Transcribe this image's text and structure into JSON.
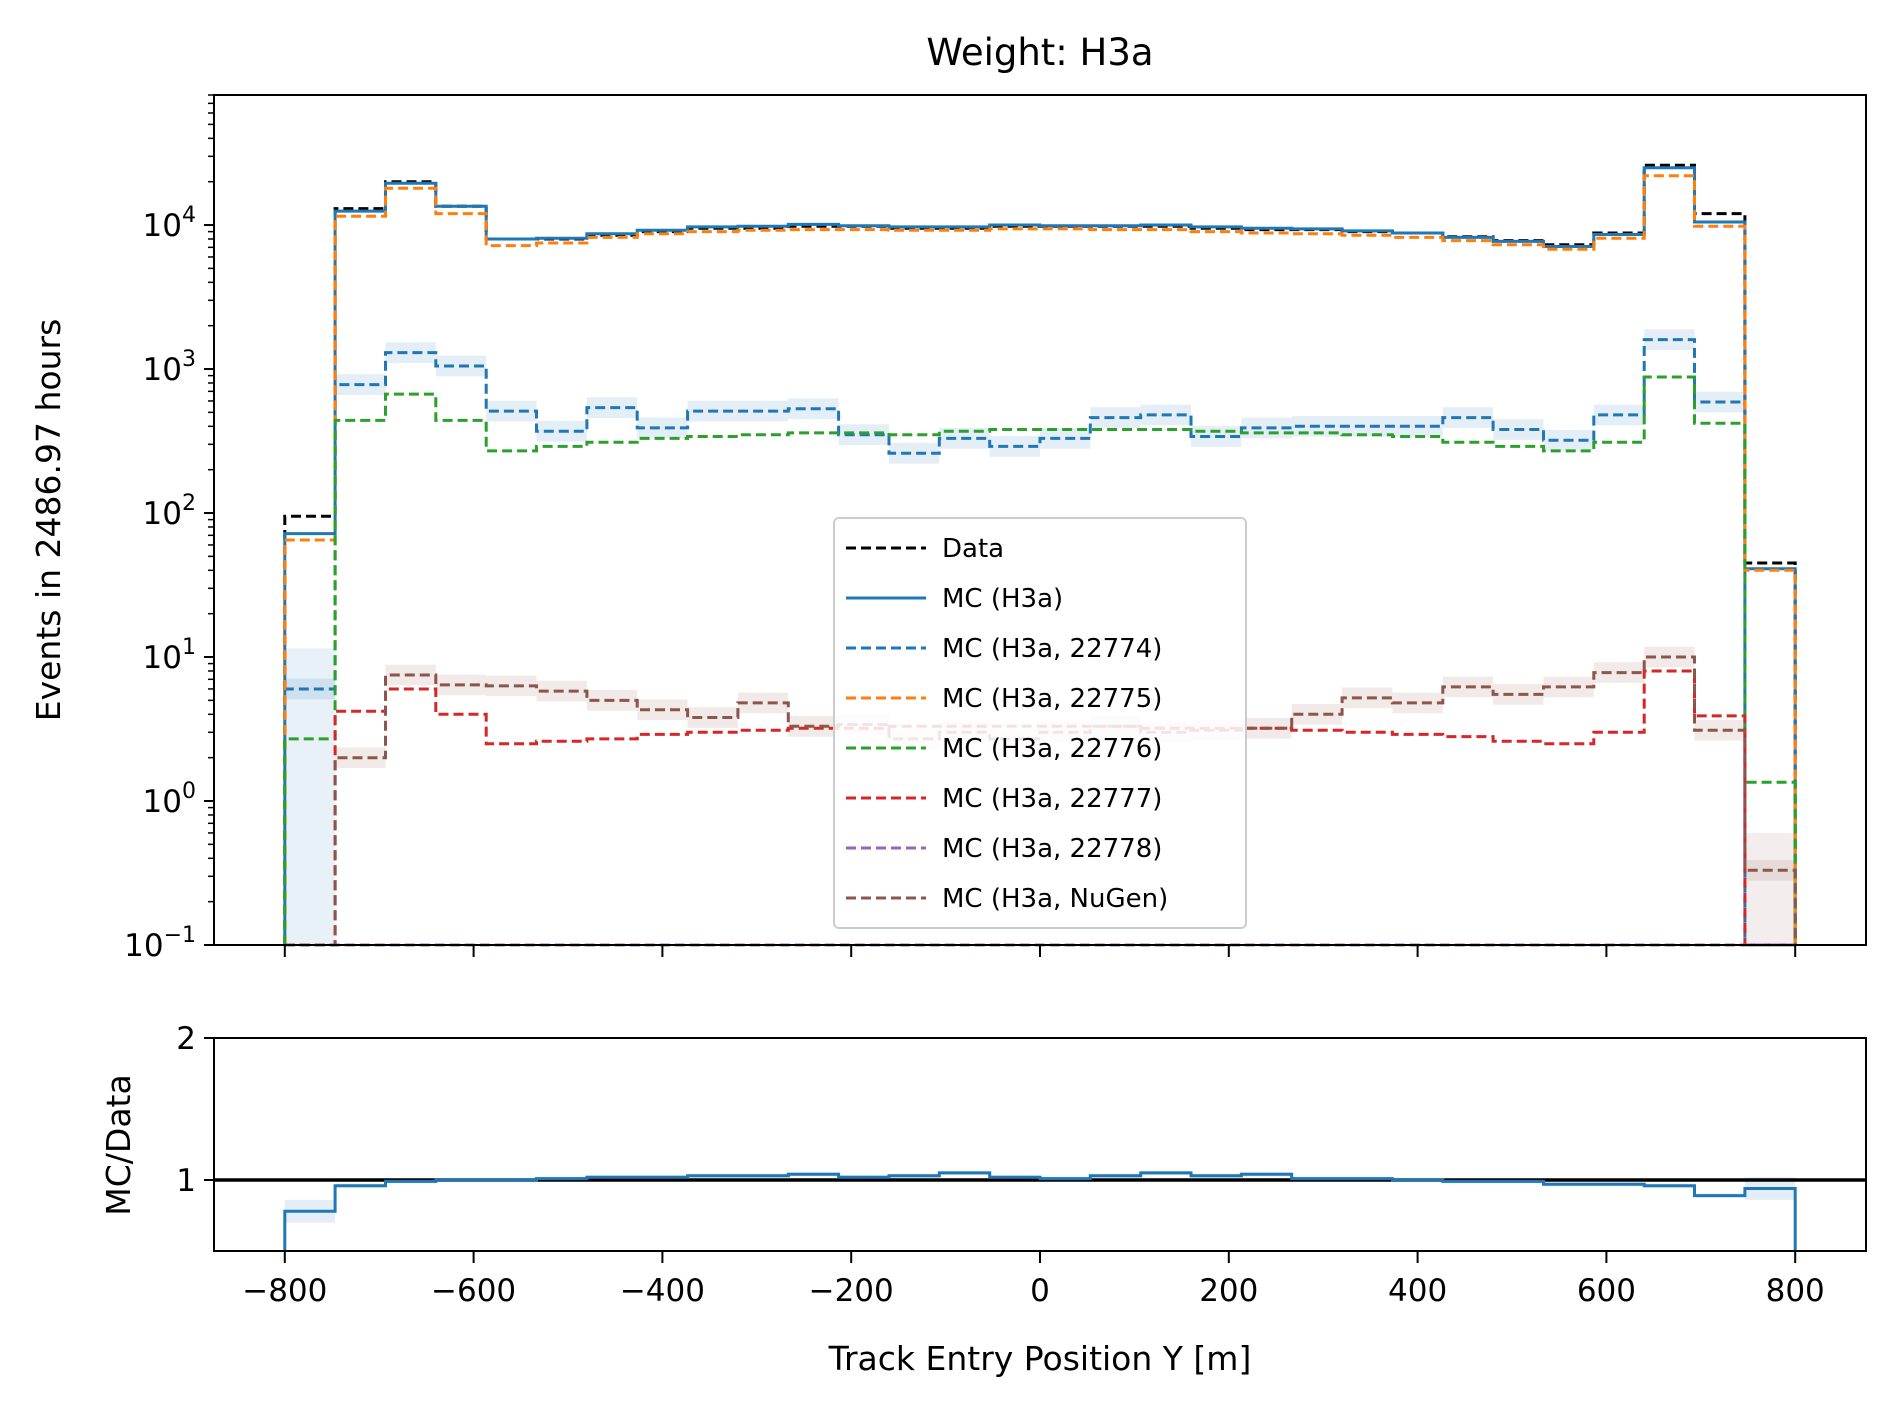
{
  "chart_data": [
    {
      "type": "histogram-step",
      "title": "Weight: H3a",
      "xlabel": "",
      "ylabel": "Events in 2486.97 hours",
      "yscale": "log",
      "xlim": [
        -875,
        875
      ],
      "ylim": [
        0.1,
        80000
      ],
      "xticks": [
        -800,
        -600,
        -400,
        -200,
        0,
        200,
        400,
        600,
        800
      ],
      "yticks": [
        {
          "value": 0.1,
          "base": "10",
          "exp": "−1"
        },
        {
          "value": 1,
          "base": "10",
          "exp": "0"
        },
        {
          "value": 10,
          "base": "10",
          "exp": "1"
        },
        {
          "value": 100,
          "base": "10",
          "exp": "2"
        },
        {
          "value": 1000,
          "base": "10",
          "exp": "3"
        },
        {
          "value": 10000,
          "base": "10",
          "exp": "4"
        }
      ],
      "legend_position": "lower-center",
      "bin_edges": [
        -800,
        -746.67,
        -693.33,
        -640,
        -586.67,
        -533.33,
        -480,
        -426.67,
        -373.33,
        -320,
        -266.67,
        -213.33,
        -160,
        -106.67,
        -53.33,
        0,
        53.33,
        106.67,
        160,
        213.33,
        266.67,
        320,
        373.33,
        426.67,
        480,
        533.33,
        586.67,
        640,
        693.33,
        746.67,
        800
      ],
      "series": [
        {
          "name": "Data",
          "color": "#000000",
          "dash": true,
          "values": [
            95,
            13000,
            20000,
            13500,
            8000,
            8000,
            8500,
            9000,
            9500,
            9500,
            9800,
            9800,
            9500,
            9500,
            9800,
            9800,
            9800,
            9800,
            9500,
            9300,
            9300,
            9000,
            8800,
            8300,
            7800,
            7300,
            8800,
            26000,
            12000,
            45
          ]
        },
        {
          "name": "MC (H3a)",
          "color": "#1f77b4",
          "dash": false,
          "values": [
            72,
            12500,
            19500,
            13500,
            8000,
            8100,
            8700,
            9200,
            9700,
            9800,
            10100,
            9900,
            9700,
            9700,
            10000,
            9900,
            9900,
            10000,
            9700,
            9500,
            9400,
            9100,
            8800,
            8200,
            7700,
            7100,
            8600,
            25000,
            10500,
            41
          ]
        },
        {
          "name": "MC (H3a, 22774)",
          "color": "#1f77b4",
          "dash": true,
          "band": true,
          "values": [
            6,
            780,
            1300,
            1050,
            510,
            370,
            540,
            390,
            510,
            510,
            530,
            350,
            260,
            330,
            290,
            330,
            460,
            480,
            340,
            390,
            400,
            400,
            400,
            460,
            380,
            320,
            480,
            1600,
            590,
            0.05
          ]
        },
        {
          "name": "MC (H3a, 22775)",
          "color": "#ff7f0e",
          "dash": true,
          "values": [
            65,
            11500,
            18000,
            12000,
            7200,
            7500,
            8200,
            8700,
            9000,
            9200,
            9300,
            9300,
            9200,
            9200,
            9400,
            9400,
            9300,
            9300,
            9000,
            8800,
            8700,
            8500,
            8200,
            7800,
            7300,
            6800,
            8100,
            22000,
            9800,
            40
          ]
        },
        {
          "name": "MC (H3a, 22776)",
          "color": "#2ca02c",
          "dash": true,
          "values": [
            2.7,
            440,
            670,
            440,
            270,
            290,
            310,
            330,
            340,
            350,
            360,
            360,
            350,
            370,
            380,
            380,
            380,
            380,
            370,
            360,
            360,
            350,
            340,
            310,
            290,
            270,
            310,
            880,
            420,
            1.35
          ]
        },
        {
          "name": "MC (H3a, 22777)",
          "color": "#d62728",
          "dash": true,
          "values": [
            0.05,
            4.2,
            6.0,
            4.0,
            2.5,
            2.6,
            2.7,
            2.9,
            3.0,
            3.1,
            3.2,
            3.2,
            3.3,
            3.3,
            3.3,
            3.3,
            3.3,
            3.2,
            3.2,
            3.2,
            3.1,
            3.0,
            2.9,
            2.8,
            2.6,
            2.5,
            3.0,
            8.0,
            3.9,
            0.05
          ]
        },
        {
          "name": "MC (H3a, 22778)",
          "color": "#9467bd",
          "dash": true,
          "values": [
            0.05,
            0.05,
            0.05,
            0.05,
            0.05,
            0.05,
            0.05,
            0.05,
            0.05,
            0.05,
            0.05,
            0.05,
            0.05,
            0.05,
            0.05,
            0.05,
            0.05,
            0.05,
            0.05,
            0.05,
            0.05,
            0.05,
            0.05,
            0.05,
            0.05,
            0.05,
            0.05,
            0.05,
            0.05,
            0.05
          ]
        },
        {
          "name": "MC (H3a, NuGen)",
          "color": "#8c564b",
          "dash": true,
          "band": true,
          "values": [
            0.05,
            2.0,
            7.5,
            6.4,
            6.3,
            5.8,
            5.0,
            4.3,
            3.8,
            4.8,
            3.3,
            3.4,
            2.7,
            3.0,
            2.7,
            3.0,
            3.3,
            3.0,
            3.1,
            3.2,
            4.0,
            5.2,
            4.8,
            6.2,
            5.5,
            6.2,
            7.8,
            10.0,
            3.1,
            0.33
          ]
        }
      ]
    },
    {
      "type": "histogram-step",
      "xlabel": "Track Entry Position Y [m]",
      "ylabel": "MC/Data",
      "xlim": [
        -875,
        875
      ],
      "ylim": [
        0.5,
        2
      ],
      "xticks": [
        -800,
        -600,
        -400,
        -200,
        0,
        200,
        400,
        600,
        800
      ],
      "yticks": [
        1,
        2
      ],
      "reference_line": 1,
      "series": [
        {
          "name": "",
          "color": "#1f77b4",
          "band": true,
          "values": [
            0.78,
            0.96,
            0.99,
            1.0,
            1.0,
            1.01,
            1.02,
            1.02,
            1.03,
            1.03,
            1.04,
            1.02,
            1.03,
            1.05,
            1.02,
            1.01,
            1.03,
            1.05,
            1.03,
            1.04,
            1.01,
            1.01,
            1.0,
            0.99,
            0.99,
            0.97,
            0.97,
            0.96,
            0.89,
            0.94
          ]
        }
      ]
    }
  ]
}
